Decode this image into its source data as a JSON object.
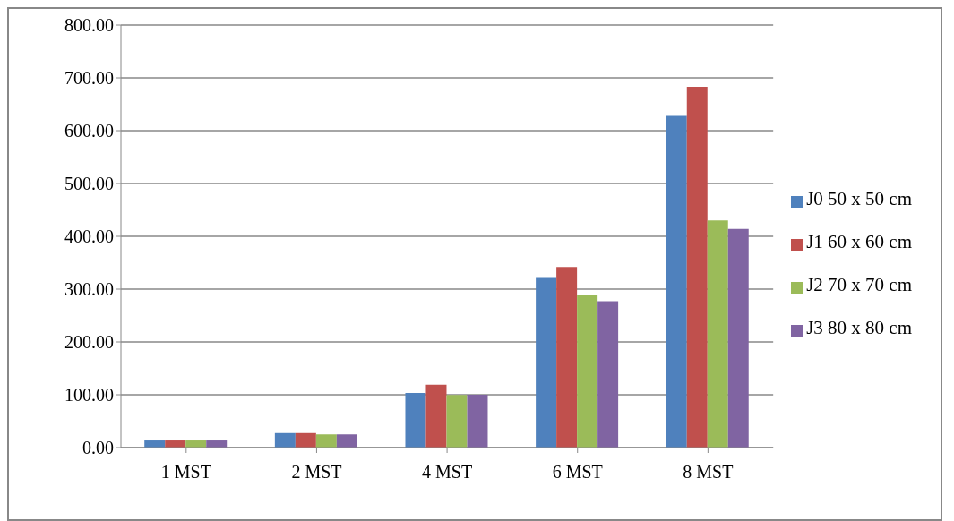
{
  "chart_data": {
    "type": "bar",
    "categories": [
      "1 MST",
      "2 MST",
      "4 MST",
      "6 MST",
      "8 MST"
    ],
    "series": [
      {
        "name": "J0  50 x 50 cm",
        "color": "#4f81bd",
        "values": [
          13.5,
          27.5,
          103.5,
          323,
          628
        ]
      },
      {
        "name": "J1  60 x 60 cm",
        "color": "#c0504d",
        "values": [
          13.5,
          27.5,
          119,
          342,
          683
        ]
      },
      {
        "name": "J2  70 x 70 cm",
        "color": "#9bbb59",
        "values": [
          13.5,
          25,
          99.5,
          290,
          430
        ]
      },
      {
        "name": "J3  80 x 80 cm",
        "color": "#8064a2",
        "values": [
          13.5,
          25,
          100,
          277,
          414
        ]
      }
    ],
    "ylim": [
      0,
      800
    ],
    "yticks": [
      {
        "value": 0,
        "label": "0.00"
      },
      {
        "value": 100,
        "label": "100.00"
      },
      {
        "value": 200,
        "label": "200.00"
      },
      {
        "value": 300,
        "label": "300.00"
      },
      {
        "value": 400,
        "label": "400.00"
      },
      {
        "value": 500,
        "label": "500.00"
      },
      {
        "value": 600,
        "label": "600.00"
      },
      {
        "value": 700,
        "label": "700.00"
      },
      {
        "value": 800,
        "label": "800.00"
      }
    ],
    "grid": "y",
    "legend": "right"
  }
}
